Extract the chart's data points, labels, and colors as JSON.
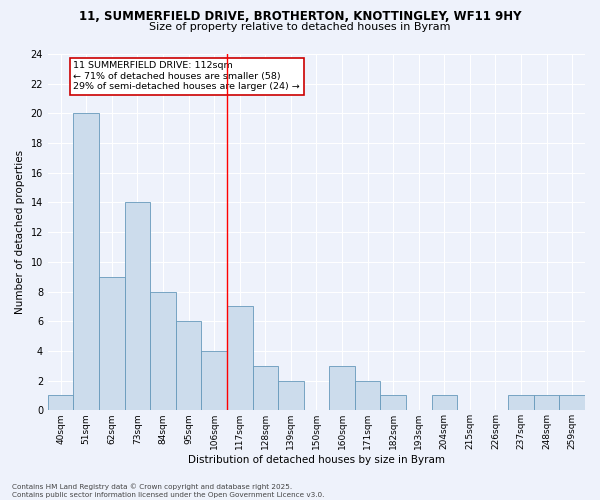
{
  "title_line1": "11, SUMMERFIELD DRIVE, BROTHERTON, KNOTTINGLEY, WF11 9HY",
  "title_line2": "Size of property relative to detached houses in Byram",
  "xlabel": "Distribution of detached houses by size in Byram",
  "ylabel": "Number of detached properties",
  "bins": [
    "40sqm",
    "51sqm",
    "62sqm",
    "73sqm",
    "84sqm",
    "95sqm",
    "106sqm",
    "117sqm",
    "128sqm",
    "139sqm",
    "150sqm",
    "160sqm",
    "171sqm",
    "182sqm",
    "193sqm",
    "204sqm",
    "215sqm",
    "226sqm",
    "237sqm",
    "248sqm",
    "259sqm"
  ],
  "counts": [
    1,
    20,
    9,
    14,
    8,
    6,
    4,
    7,
    3,
    2,
    0,
    3,
    2,
    1,
    0,
    1,
    0,
    0,
    1,
    1,
    1
  ],
  "bar_color": "#ccdcec",
  "bar_edge_color": "#6699bb",
  "background_color": "#eef2fb",
  "grid_color": "#ffffff",
  "red_line_x": 6.5,
  "annotation_text": "11 SUMMERFIELD DRIVE: 112sqm\n← 71% of detached houses are smaller (58)\n29% of semi-detached houses are larger (24) →",
  "annotation_box_color": "#ffffff",
  "annotation_box_edge": "#cc0000",
  "ylim": [
    0,
    24
  ],
  "yticks": [
    0,
    2,
    4,
    6,
    8,
    10,
    12,
    14,
    16,
    18,
    20,
    22,
    24
  ],
  "footer": "Contains HM Land Registry data © Crown copyright and database right 2025.\nContains public sector information licensed under the Open Government Licence v3.0."
}
